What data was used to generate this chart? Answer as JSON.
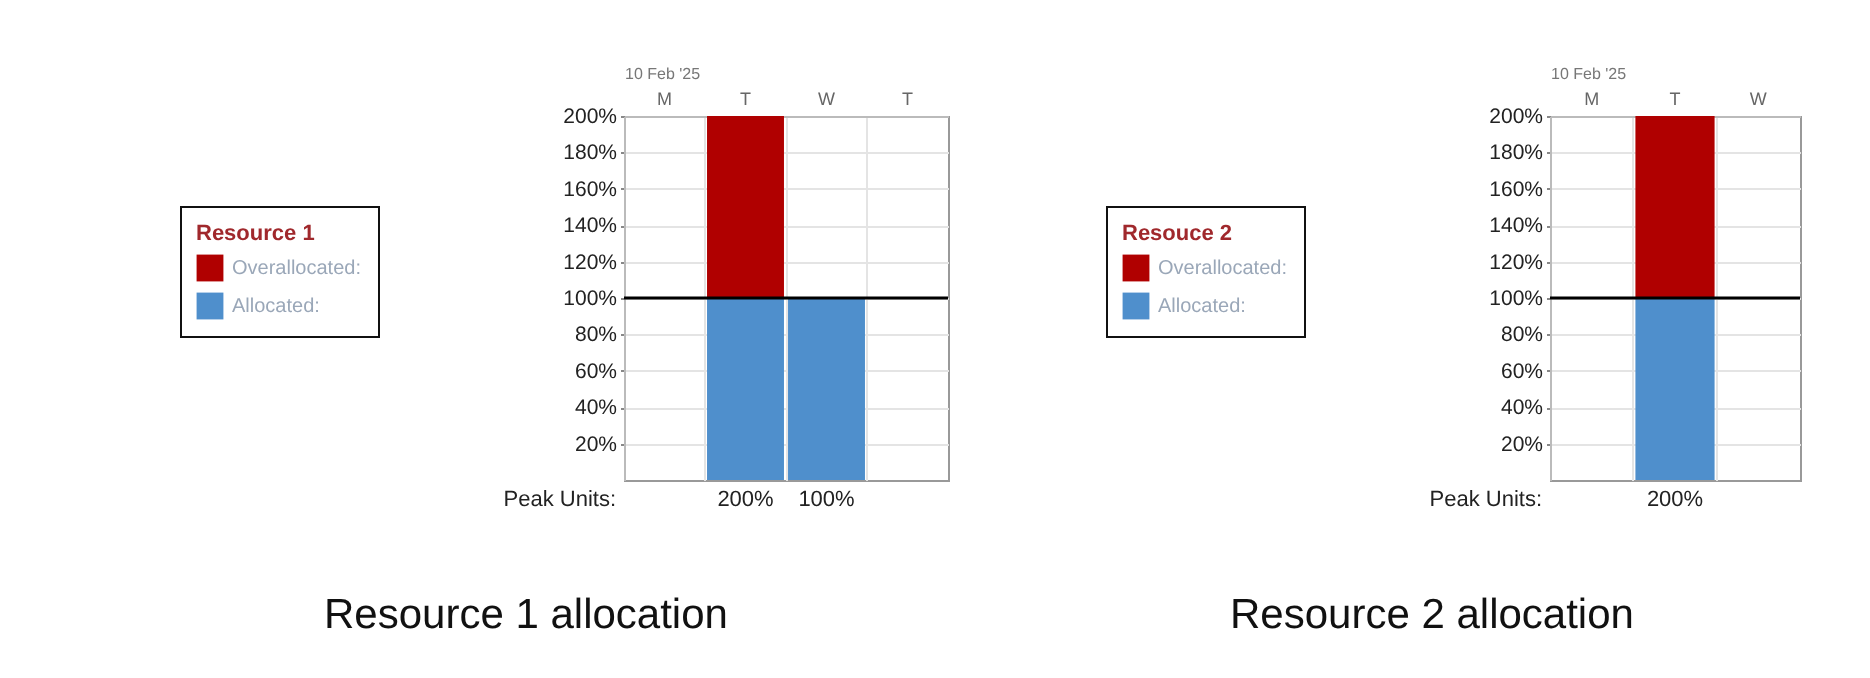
{
  "chart_data": [
    {
      "type": "bar",
      "title": "Resource 1 allocation",
      "xlabel": "10 Feb '25",
      "legend_title": "Resource 1",
      "categories": [
        "M",
        "T",
        "W",
        "T"
      ],
      "stacked": true,
      "legend": "left",
      "grid": true,
      "series": [
        {
          "name": "Allocated:",
          "color": "#4f8fcc",
          "values": [
            null,
            100,
            100,
            null
          ]
        },
        {
          "name": "Overallocated:",
          "color": "#b00000",
          "values": [
            null,
            100,
            null,
            null
          ]
        }
      ],
      "ylim": [
        0,
        200
      ],
      "yticks": [
        {
          "value": 20,
          "label": "20%"
        },
        {
          "value": 40,
          "label": "40%"
        },
        {
          "value": 60,
          "label": "60%"
        },
        {
          "value": 80,
          "label": "80%"
        },
        {
          "value": 100,
          "label": "100%"
        },
        {
          "value": 120,
          "label": "120%"
        },
        {
          "value": 140,
          "label": "140%"
        },
        {
          "value": 160,
          "label": "160%"
        },
        {
          "value": 180,
          "label": "180%"
        },
        {
          "value": 200,
          "label": "200%"
        }
      ],
      "ref_lines": [
        {
          "axis": "y",
          "value": 100,
          "color": "#000000"
        }
      ],
      "totals": [
        null,
        "200%",
        "100%",
        null
      ],
      "annotations": [
        "Peak Units:"
      ]
    },
    {
      "type": "bar",
      "title": "Resource 2 allocation",
      "xlabel": "10 Feb '25",
      "legend_title": "Resouce 2",
      "categories": [
        "M",
        "T",
        "W"
      ],
      "stacked": true,
      "legend": "left",
      "grid": true,
      "series": [
        {
          "name": "Allocated:",
          "color": "#4f8fcc",
          "values": [
            null,
            100,
            null
          ]
        },
        {
          "name": "Overallocated:",
          "color": "#b00000",
          "values": [
            null,
            100,
            null
          ]
        }
      ],
      "ylim": [
        0,
        200
      ],
      "yticks": [
        {
          "value": 20,
          "label": "20%"
        },
        {
          "value": 40,
          "label": "40%"
        },
        {
          "value": 60,
          "label": "60%"
        },
        {
          "value": 80,
          "label": "80%"
        },
        {
          "value": 100,
          "label": "100%"
        },
        {
          "value": 120,
          "label": "120%"
        },
        {
          "value": 140,
          "label": "140%"
        },
        {
          "value": 160,
          "label": "160%"
        },
        {
          "value": 180,
          "label": "180%"
        },
        {
          "value": 200,
          "label": "200%"
        }
      ],
      "ref_lines": [
        {
          "axis": "y",
          "value": 100,
          "color": "#000000"
        }
      ],
      "totals": [
        null,
        "200%",
        null
      ],
      "annotations": [
        "Peak Units:"
      ]
    }
  ]
}
